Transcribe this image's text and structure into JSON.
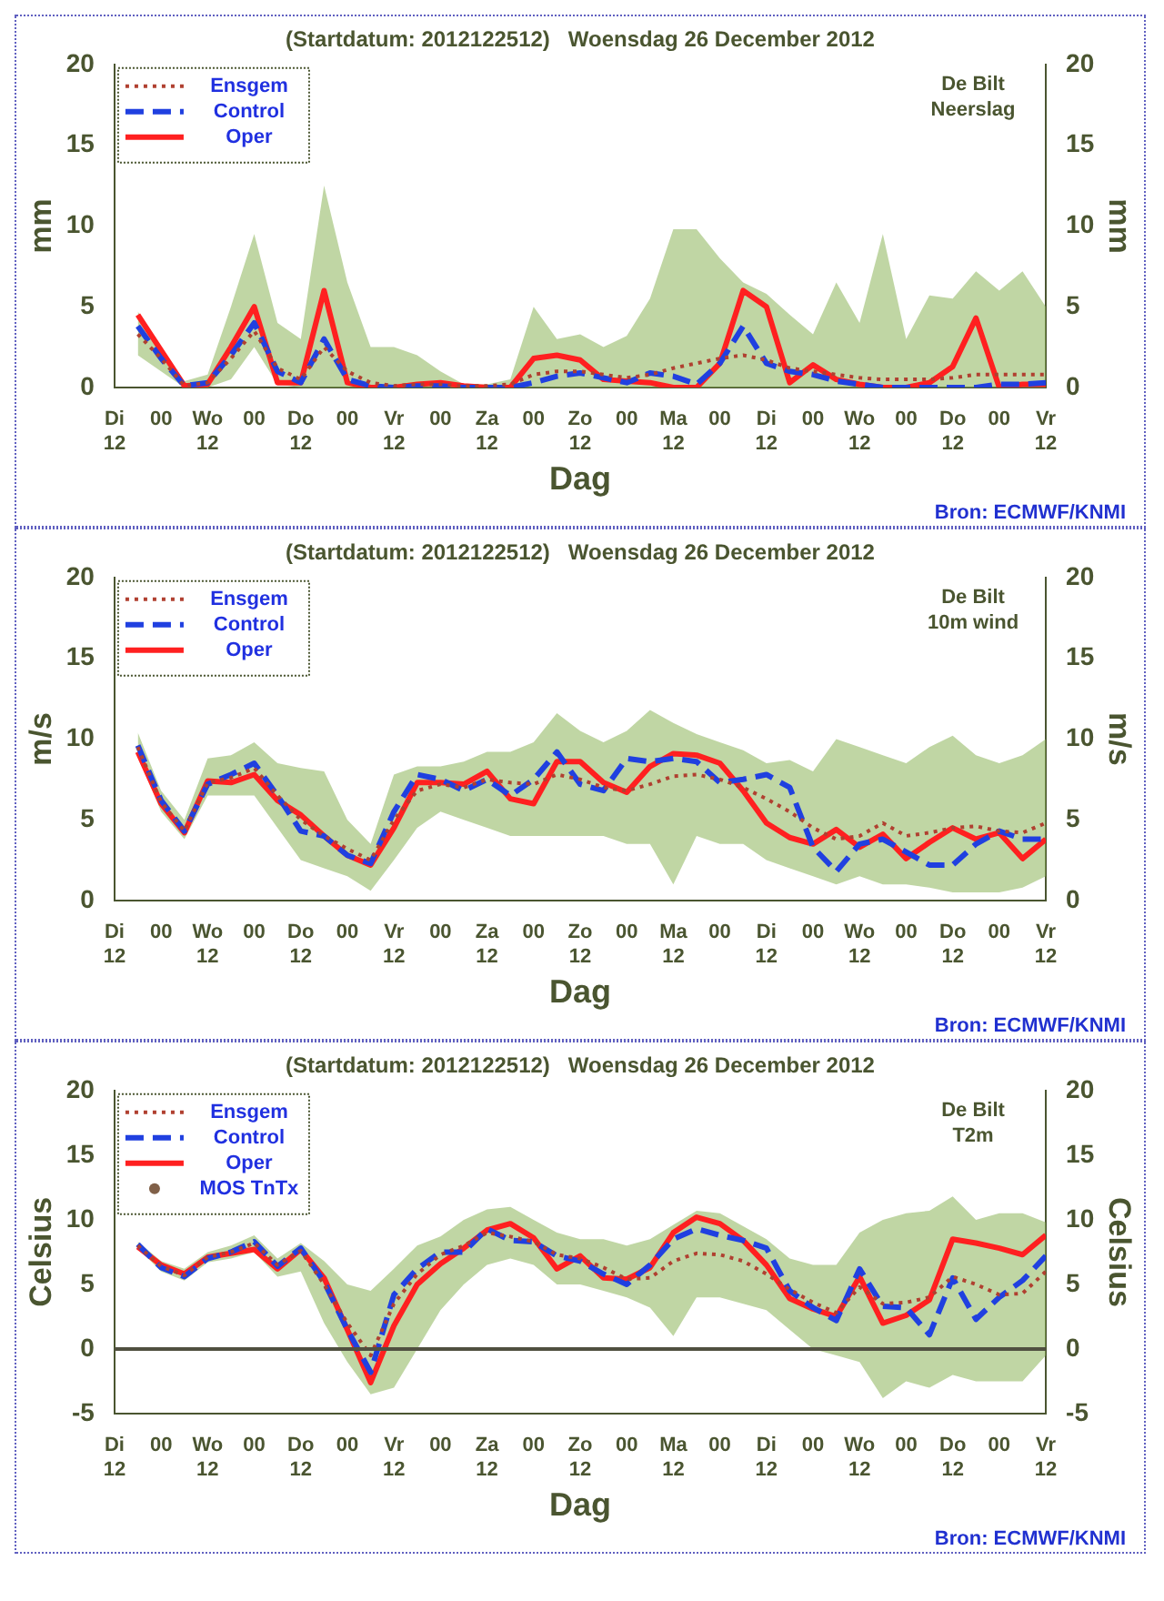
{
  "chart_data": [
    {
      "type": "line",
      "title": "(Startdatum: 2012122512)   Woensdag 26 December 2012",
      "xlabel": "Dag",
      "ylabel": "mm",
      "y2label": "mm",
      "annotations": [
        "De Bilt",
        "Neerslag",
        "Bron: ECMWF/KNMI"
      ],
      "legend": "top left",
      "grid": false,
      "xlim": [
        "2012-12-25T12:00",
        "2013-01-04T12:00"
      ],
      "xticks": [
        {
          "value": "2012-12-25T12:00",
          "label": "Di\n12"
        },
        {
          "value": "2012-12-26T00:00",
          "label": "00"
        },
        {
          "value": "2012-12-26T12:00",
          "label": "Wo\n12"
        },
        {
          "value": "2012-12-27T00:00",
          "label": "00"
        },
        {
          "value": "2012-12-27T12:00",
          "label": "Do\n12"
        },
        {
          "value": "2012-12-28T00:00",
          "label": "00"
        },
        {
          "value": "2012-12-28T12:00",
          "label": "Vr\n12"
        },
        {
          "value": "2012-12-29T00:00",
          "label": "00"
        },
        {
          "value": "2012-12-29T12:00",
          "label": "Za\n12"
        },
        {
          "value": "2012-12-30T00:00",
          "label": "00"
        },
        {
          "value": "2012-12-30T12:00",
          "label": "Zo\n12"
        },
        {
          "value": "2012-12-31T00:00",
          "label": "00"
        },
        {
          "value": "2012-12-31T12:00",
          "label": "Ma\n12"
        },
        {
          "value": "2013-01-01T00:00",
          "label": "00"
        },
        {
          "value": "2013-01-01T12:00",
          "label": "Di\n12"
        },
        {
          "value": "2013-01-02T00:00",
          "label": "00"
        },
        {
          "value": "2013-01-02T12:00",
          "label": "Wo\n12"
        },
        {
          "value": "2013-01-03T00:00",
          "label": "00"
        },
        {
          "value": "2013-01-03T12:00",
          "label": "Do\n12"
        },
        {
          "value": "2013-01-04T00:00",
          "label": "00"
        },
        {
          "value": "2013-01-04T12:00",
          "label": "Vr\n12"
        }
      ],
      "ylim": [
        0,
        20
      ],
      "yticks": [
        0,
        5,
        10,
        15,
        20
      ],
      "y2lim": [
        0,
        20
      ],
      "y2ticks": [
        0,
        5,
        10,
        15,
        20
      ],
      "x": [
        "2012-12-25T18:00",
        "2012-12-26T00:00",
        "2012-12-26T06:00",
        "2012-12-26T12:00",
        "2012-12-26T18:00",
        "2012-12-27T00:00",
        "2012-12-27T06:00",
        "2012-12-27T12:00",
        "2012-12-27T18:00",
        "2012-12-28T00:00",
        "2012-12-28T06:00",
        "2012-12-28T12:00",
        "2012-12-28T18:00",
        "2012-12-29T00:00",
        "2012-12-29T06:00",
        "2012-12-29T12:00",
        "2012-12-29T18:00",
        "2012-12-30T00:00",
        "2012-12-30T06:00",
        "2012-12-30T12:00",
        "2012-12-30T18:00",
        "2012-12-31T00:00",
        "2012-12-31T06:00",
        "2012-12-31T12:00",
        "2012-12-31T18:00",
        "2013-01-01T00:00",
        "2013-01-01T06:00",
        "2013-01-01T12:00",
        "2013-01-01T18:00",
        "2013-01-02T00:00",
        "2013-01-02T06:00",
        "2013-01-02T12:00",
        "2013-01-02T18:00",
        "2013-01-03T00:00",
        "2013-01-03T06:00",
        "2013-01-03T12:00",
        "2013-01-03T18:00",
        "2013-01-04T00:00",
        "2013-01-04T06:00",
        "2013-01-04T12:00"
      ],
      "series": [
        {
          "name": "Ensgem",
          "color": "#b04030",
          "line_style": "dotted",
          "values": [
            3.3,
            1.8,
            0.1,
            0.3,
            1.8,
            3.5,
            1.2,
            0.5,
            2.5,
            1.0,
            0.3,
            0.1,
            0.2,
            0.2,
            0.1,
            0.1,
            0.2,
            0.8,
            1.0,
            1.0,
            0.8,
            0.6,
            0.8,
            1.2,
            1.5,
            1.8,
            2.0,
            1.7,
            1.2,
            1.0,
            0.8,
            0.6,
            0.5,
            0.5,
            0.5,
            0.6,
            0.8,
            0.8,
            0.8,
            0.8
          ],
          "lower": [
            2,
            1,
            0,
            0,
            0.5,
            2.5,
            0.2,
            0,
            0,
            0,
            0,
            0,
            0,
            0,
            0,
            0,
            0,
            0,
            0,
            0,
            0,
            0,
            0,
            0,
            0,
            0,
            0,
            0,
            0,
            0,
            0,
            0,
            0,
            0,
            0,
            0,
            0,
            0,
            0,
            0
          ],
          "upper": [
            4.7,
            2.5,
            0.4,
            0.8,
            5,
            9.5,
            4,
            3,
            12.5,
            6.5,
            2.5,
            2.5,
            2,
            1,
            0.2,
            0.2,
            0.5,
            5,
            3,
            3.3,
            2.5,
            3.2,
            5.5,
            9.8,
            9.8,
            8,
            6.5,
            5.8,
            4.5,
            3.3,
            6.5,
            4,
            9.5,
            3,
            5.7,
            5.5,
            7.2,
            6,
            7.2,
            5
          ]
        },
        {
          "name": "Control",
          "color": "#2040e0",
          "line_style": "dashed",
          "values": [
            3.8,
            1.8,
            0.1,
            0.3,
            2,
            4.0,
            1,
            0.3,
            3.0,
            0.5,
            0.1,
            0,
            0.1,
            0.1,
            0,
            0,
            0,
            0.3,
            0.7,
            0.9,
            0.6,
            0.3,
            0.9,
            0.7,
            0.2,
            1.5,
            3.8,
            1.5,
            1.0,
            0.8,
            0.4,
            0.2,
            0,
            0,
            0,
            0,
            0,
            0.2,
            0.2,
            0.3
          ]
        },
        {
          "name": "Oper",
          "color": "#ff2020",
          "line_style": "solid",
          "values": [
            4.5,
            2.3,
            0.1,
            0.2,
            2.5,
            5.0,
            0.3,
            0.3,
            6.0,
            0.3,
            0,
            0,
            0.2,
            0.3,
            0.1,
            0,
            0,
            1.8,
            2.0,
            1.7,
            0.5,
            0.4,
            0.3,
            0,
            0,
            1.5,
            6.0,
            5.0,
            0.3,
            1.4,
            0.5,
            0.2,
            0,
            0,
            0.3,
            1.3,
            4.3,
            0,
            0.2,
            0.2
          ]
        }
      ]
    },
    {
      "type": "line",
      "title": "(Startdatum: 2012122512)   Woensdag 26 December 2012",
      "xlabel": "Dag",
      "ylabel": "m/s",
      "y2label": "m/s",
      "annotations": [
        "De Bilt",
        "10m wind",
        "Bron: ECMWF/KNMI"
      ],
      "legend": "top left",
      "grid": false,
      "xlim": [
        "2012-12-25T12:00",
        "2013-01-04T12:00"
      ],
      "xticks": [
        {
          "value": "2012-12-25T12:00",
          "label": "Di\n12"
        },
        {
          "value": "2012-12-26T00:00",
          "label": "00"
        },
        {
          "value": "2012-12-26T12:00",
          "label": "Wo\n12"
        },
        {
          "value": "2012-12-27T00:00",
          "label": "00"
        },
        {
          "value": "2012-12-27T12:00",
          "label": "Do\n12"
        },
        {
          "value": "2012-12-28T00:00",
          "label": "00"
        },
        {
          "value": "2012-12-28T12:00",
          "label": "Vr\n12"
        },
        {
          "value": "2012-12-29T00:00",
          "label": "00"
        },
        {
          "value": "2012-12-29T12:00",
          "label": "Za\n12"
        },
        {
          "value": "2012-12-30T00:00",
          "label": "00"
        },
        {
          "value": "2012-12-30T12:00",
          "label": "Zo\n12"
        },
        {
          "value": "2012-12-31T00:00",
          "label": "00"
        },
        {
          "value": "2012-12-31T12:00",
          "label": "Ma\n12"
        },
        {
          "value": "2013-01-01T00:00",
          "label": "00"
        },
        {
          "value": "2013-01-01T12:00",
          "label": "Di\n12"
        },
        {
          "value": "2013-01-02T00:00",
          "label": "00"
        },
        {
          "value": "2013-01-02T12:00",
          "label": "Wo\n12"
        },
        {
          "value": "2013-01-03T00:00",
          "label": "00"
        },
        {
          "value": "2013-01-03T12:00",
          "label": "Do\n12"
        },
        {
          "value": "2013-01-04T00:00",
          "label": "00"
        },
        {
          "value": "2013-01-04T12:00",
          "label": "Vr\n12"
        }
      ],
      "ylim": [
        0,
        20
      ],
      "yticks": [
        0,
        5,
        10,
        15,
        20
      ],
      "y2lim": [
        0,
        20
      ],
      "y2ticks": [
        0,
        5,
        10,
        15,
        20
      ],
      "x": [
        "2012-12-25T18:00",
        "2012-12-26T00:00",
        "2012-12-26T06:00",
        "2012-12-26T12:00",
        "2012-12-26T18:00",
        "2012-12-27T00:00",
        "2012-12-27T06:00",
        "2012-12-27T12:00",
        "2012-12-27T18:00",
        "2012-12-28T00:00",
        "2012-12-28T06:00",
        "2012-12-28T12:00",
        "2012-12-28T18:00",
        "2012-12-29T00:00",
        "2012-12-29T06:00",
        "2012-12-29T12:00",
        "2012-12-29T18:00",
        "2012-12-30T00:00",
        "2012-12-30T06:00",
        "2012-12-30T12:00",
        "2012-12-30T18:00",
        "2012-12-31T00:00",
        "2012-12-31T06:00",
        "2012-12-31T12:00",
        "2012-12-31T18:00",
        "2013-01-01T00:00",
        "2013-01-01T06:00",
        "2013-01-01T12:00",
        "2013-01-01T18:00",
        "2013-01-02T00:00",
        "2013-01-02T06:00",
        "2013-01-02T12:00",
        "2013-01-02T18:00",
        "2013-01-03T00:00",
        "2013-01-03T06:00",
        "2013-01-03T12:00",
        "2013-01-03T18:00",
        "2013-01-04T00:00",
        "2013-01-04T06:00",
        "2013-01-04T12:00"
      ],
      "series": [
        {
          "name": "Ensgem",
          "color": "#b04030",
          "line_style": "dotted",
          "values": [
            9.5,
            6.1,
            4.3,
            7.3,
            7.6,
            8.2,
            6.5,
            5.0,
            4.0,
            3.2,
            2.5,
            5.0,
            6.8,
            7.2,
            7.0,
            7.5,
            7.3,
            7.2,
            7.8,
            7.5,
            7.0,
            6.8,
            7.2,
            7.7,
            7.8,
            7.5,
            7.0,
            6.3,
            5.5,
            4.5,
            3.8,
            4.0,
            4.8,
            4.0,
            4.2,
            4.5,
            4.6,
            4.3,
            4.2,
            4.8
          ],
          "lower": [
            9,
            5.5,
            3.8,
            6.5,
            6.5,
            6.5,
            4.5,
            2.5,
            2,
            1.5,
            0.6,
            2.5,
            4.5,
            5.5,
            5,
            4.5,
            4,
            4,
            4,
            4,
            4,
            3.5,
            3.5,
            1,
            4,
            3.5,
            3.5,
            2.5,
            2,
            1.5,
            1,
            1.5,
            1,
            1,
            0.8,
            0.5,
            0.5,
            0.5,
            0.8,
            1.5
          ],
          "upper": [
            10.4,
            6.8,
            5,
            8.8,
            9,
            9.8,
            8.5,
            8.2,
            8,
            5,
            3.5,
            7.8,
            8.3,
            8.3,
            8.6,
            9.2,
            9.2,
            9.8,
            11.6,
            10.5,
            9.8,
            10.5,
            11.8,
            11,
            10.3,
            9.8,
            9.3,
            8.5,
            8.7,
            8,
            10,
            9.5,
            9,
            8.5,
            9.5,
            10.2,
            9,
            8.5,
            9,
            10
          ]
        },
        {
          "name": "Control",
          "color": "#2040e0",
          "line_style": "dashed",
          "values": [
            9.6,
            6.2,
            4.3,
            7.2,
            7.8,
            8.5,
            6.5,
            4.3,
            4.0,
            2.8,
            2.3,
            5.5,
            7.8,
            7.5,
            6.8,
            7.5,
            6.5,
            7.5,
            9.2,
            7.2,
            6.8,
            8.8,
            8.6,
            8.8,
            8.6,
            7.3,
            7.5,
            7.8,
            7.0,
            3.3,
            1.8,
            3.5,
            3.8,
            3.0,
            2.2,
            2.2,
            3.5,
            4.3,
            3.8,
            3.8
          ]
        },
        {
          "name": "Oper",
          "color": "#ff2020",
          "line_style": "solid",
          "values": [
            9.2,
            6.0,
            4.2,
            7.4,
            7.3,
            7.8,
            6.2,
            5.3,
            4.0,
            2.8,
            2.2,
            4.5,
            7.3,
            7.3,
            7.2,
            8.0,
            6.3,
            6.0,
            8.6,
            8.6,
            7.3,
            6.7,
            8.3,
            9.1,
            9.0,
            8.5,
            6.8,
            4.8,
            3.9,
            3.5,
            4.4,
            3.3,
            4.1,
            2.6,
            3.6,
            4.5,
            3.8,
            4.2,
            2.6,
            3.8
          ]
        }
      ]
    },
    {
      "type": "line",
      "title": "(Startdatum: 2012122512)   Woensdag 26 December 2012",
      "xlabel": "Dag",
      "ylabel": "Celsius",
      "y2label": "Celsius",
      "annotations": [
        "De Bilt",
        "T2m",
        "Bron: ECMWF/KNMI"
      ],
      "legend": "top left",
      "grid": false,
      "xlim": [
        "2012-12-25T12:00",
        "2013-01-04T12:00"
      ],
      "xticks": [
        {
          "value": "2012-12-25T12:00",
          "label": "Di\n12"
        },
        {
          "value": "2012-12-26T00:00",
          "label": "00"
        },
        {
          "value": "2012-12-26T12:00",
          "label": "Wo\n12"
        },
        {
          "value": "2012-12-27T00:00",
          "label": "00"
        },
        {
          "value": "2012-12-27T12:00",
          "label": "Do\n12"
        },
        {
          "value": "2012-12-28T00:00",
          "label": "00"
        },
        {
          "value": "2012-12-28T12:00",
          "label": "Vr\n12"
        },
        {
          "value": "2012-12-29T00:00",
          "label": "00"
        },
        {
          "value": "2012-12-29T12:00",
          "label": "Za\n12"
        },
        {
          "value": "2012-12-30T00:00",
          "label": "00"
        },
        {
          "value": "2012-12-30T12:00",
          "label": "Zo\n12"
        },
        {
          "value": "2012-12-31T00:00",
          "label": "00"
        },
        {
          "value": "2012-12-31T12:00",
          "label": "Ma\n12"
        },
        {
          "value": "2013-01-01T00:00",
          "label": "00"
        },
        {
          "value": "2013-01-01T12:00",
          "label": "Di\n12"
        },
        {
          "value": "2013-01-02T00:00",
          "label": "00"
        },
        {
          "value": "2013-01-02T12:00",
          "label": "Wo\n12"
        },
        {
          "value": "2013-01-03T00:00",
          "label": "00"
        },
        {
          "value": "2013-01-03T12:00",
          "label": "Do\n12"
        },
        {
          "value": "2013-01-04T00:00",
          "label": "00"
        },
        {
          "value": "2013-01-04T12:00",
          "label": "Vr\n12"
        }
      ],
      "ylim": [
        -5,
        20
      ],
      "yticks": [
        -5,
        0,
        5,
        10,
        15,
        20
      ],
      "y2lim": [
        -5,
        20
      ],
      "y2ticks": [
        -5,
        0,
        5,
        10,
        15,
        20
      ],
      "ref_lines": [
        {
          "axis": "y",
          "value": 0,
          "color": "#505040"
        }
      ],
      "x": [
        "2012-12-25T18:00",
        "2012-12-26T00:00",
        "2012-12-26T06:00",
        "2012-12-26T12:00",
        "2012-12-26T18:00",
        "2012-12-27T00:00",
        "2012-12-27T06:00",
        "2012-12-27T12:00",
        "2012-12-27T18:00",
        "2012-12-28T00:00",
        "2012-12-28T06:00",
        "2012-12-28T12:00",
        "2012-12-28T18:00",
        "2012-12-29T00:00",
        "2012-12-29T06:00",
        "2012-12-29T12:00",
        "2012-12-29T18:00",
        "2012-12-30T00:00",
        "2012-12-30T06:00",
        "2012-12-30T12:00",
        "2012-12-30T18:00",
        "2012-12-31T00:00",
        "2012-12-31T06:00",
        "2012-12-31T12:00",
        "2012-12-31T18:00",
        "2013-01-01T00:00",
        "2013-01-01T06:00",
        "2013-01-01T12:00",
        "2013-01-01T18:00",
        "2013-01-02T00:00",
        "2013-01-02T06:00",
        "2013-01-02T12:00",
        "2013-01-02T18:00",
        "2013-01-03T00:00",
        "2013-01-03T06:00",
        "2013-01-03T12:00",
        "2013-01-03T18:00",
        "2013-01-04T00:00",
        "2013-01-04T06:00",
        "2013-01-04T12:00"
      ],
      "series": [
        {
          "name": "Ensgem",
          "color": "#b04030",
          "line_style": "dotted",
          "values": [
            8.0,
            6.4,
            5.7,
            7.1,
            7.5,
            8.2,
            6.5,
            7.6,
            5.0,
            2.0,
            -0.5,
            3.5,
            5.8,
            7.3,
            8.0,
            9.0,
            8.7,
            8.3,
            7.3,
            7.0,
            6.3,
            5.4,
            5.5,
            6.8,
            7.4,
            7.3,
            6.8,
            5.8,
            4.6,
            3.6,
            2.8,
            4.8,
            3.5,
            3.6,
            4.0,
            5.6,
            5.0,
            4.2,
            4.3,
            6.0
          ],
          "lower": [
            7.8,
            6,
            5.3,
            6.7,
            7,
            7.5,
            5.6,
            6,
            2,
            -1,
            -3.5,
            -3,
            0,
            3,
            5,
            6.5,
            7,
            6.5,
            5,
            5,
            4.5,
            4,
            3.2,
            1,
            4,
            4,
            3.5,
            3,
            1.5,
            0,
            -0.5,
            -1,
            -3.8,
            -2.5,
            -3,
            -2,
            -2.5,
            -2.5,
            -2.5,
            -0.5
          ],
          "upper": [
            8.3,
            6.8,
            6.2,
            7.5,
            8,
            8.8,
            7,
            8.2,
            6.8,
            5,
            4.5,
            6.2,
            8,
            8.7,
            10,
            10.8,
            11,
            10,
            9,
            8.5,
            8.5,
            8,
            8.5,
            9.6,
            10.7,
            10.5,
            9.5,
            8.5,
            7,
            6.5,
            6.5,
            9,
            10,
            10.5,
            10.7,
            11.8,
            10,
            10.5,
            10.5,
            9.8
          ]
        },
        {
          "name": "Control",
          "color": "#2040e0",
          "line_style": "dashed",
          "values": [
            8.1,
            6.3,
            5.6,
            7.0,
            7.5,
            8.3,
            6.4,
            7.8,
            5.2,
            1.5,
            -1.8,
            4.2,
            6.2,
            7.5,
            7.5,
            9.3,
            8.4,
            8.3,
            7.2,
            6.8,
            5.8,
            5.0,
            6.5,
            8.5,
            9.3,
            8.8,
            8.4,
            7.8,
            4.5,
            3.2,
            2.2,
            6.2,
            3.3,
            3.2,
            1.1,
            5.5,
            2.3,
            4.0,
            5.3,
            7.2
          ]
        },
        {
          "name": "Oper",
          "color": "#ff2020",
          "line_style": "solid",
          "values": [
            7.9,
            6.5,
            5.8,
            7.1,
            7.4,
            7.7,
            6.2,
            7.7,
            5.5,
            1.5,
            -2.6,
            1.8,
            5.0,
            6.6,
            7.8,
            9.2,
            9.7,
            8.6,
            6.2,
            7.2,
            5.5,
            5.4,
            6.3,
            9.0,
            10.2,
            9.7,
            8.4,
            6.5,
            3.9,
            3.1,
            2.5,
            5.6,
            2.0,
            2.6,
            3.8,
            8.5,
            8.2,
            7.8,
            7.3,
            8.8
          ]
        },
        {
          "name": "MOS TnTx",
          "type": "scatter",
          "marker": "circle",
          "color": "#806048",
          "values": [
            null,
            null,
            null,
            null,
            null,
            null,
            null,
            null,
            null,
            null,
            null,
            null,
            null,
            null,
            null,
            null,
            null,
            null,
            null,
            null,
            null,
            null,
            null,
            null,
            null,
            null,
            null,
            null,
            null,
            null,
            null,
            null,
            null,
            null,
            null,
            null,
            null,
            null,
            null,
            null
          ]
        }
      ]
    }
  ]
}
